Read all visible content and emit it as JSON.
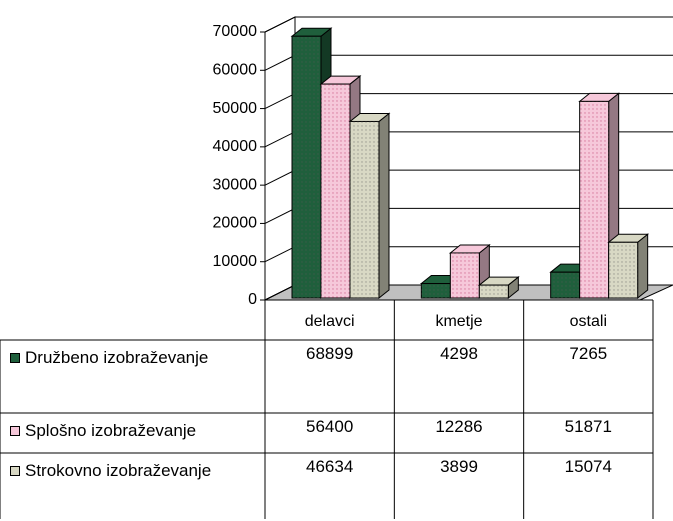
{
  "chart_data": {
    "type": "bar3d",
    "categories": [
      "delavci",
      "kmetje",
      "ostali"
    ],
    "series": [
      {
        "name": "Družbeno izobraževanje",
        "color": "#1f5f3c",
        "values": [
          68899,
          4298,
          7265
        ]
      },
      {
        "name": "Splošno izobraževanje",
        "color": "#f6c8da",
        "values": [
          56400,
          12286,
          51871
        ]
      },
      {
        "name": "Strokovno izobraževanje",
        "color": "#d8d8c4",
        "values": [
          46634,
          3899,
          15074
        ]
      }
    ],
    "ylim": [
      0,
      70000
    ],
    "yticks": [
      0,
      10000,
      20000,
      30000,
      40000,
      50000,
      60000,
      70000
    ],
    "grid": true,
    "data_table": true
  }
}
